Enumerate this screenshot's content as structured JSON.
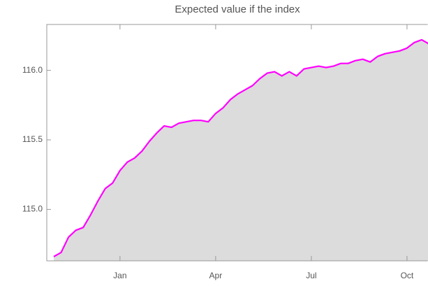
{
  "chart_data": {
    "type": "area-line",
    "title": "Expected value if the index",
    "categories": [
      null,
      null,
      null,
      null,
      null,
      null,
      null,
      null,
      null,
      "Jan",
      null,
      null,
      null,
      null,
      null,
      null,
      null,
      null,
      null,
      null,
      null,
      null,
      "Apr",
      null,
      null,
      null,
      null,
      null,
      null,
      null,
      null,
      null,
      null,
      null,
      null,
      "Jul",
      null,
      null,
      null,
      null,
      null,
      null,
      null,
      null,
      null,
      null,
      null,
      null,
      "Oct",
      null,
      null,
      null
    ],
    "values": [
      114.66,
      114.69,
      114.8,
      114.85,
      114.87,
      114.96,
      115.06,
      115.15,
      115.19,
      115.28,
      115.34,
      115.37,
      115.42,
      115.49,
      115.55,
      115.6,
      115.59,
      115.62,
      115.63,
      115.64,
      115.64,
      115.63,
      115.69,
      115.73,
      115.79,
      115.83,
      115.86,
      115.89,
      115.94,
      115.98,
      115.99,
      115.96,
      115.99,
      115.96,
      116.01,
      116.02,
      116.03,
      116.02,
      116.03,
      116.05,
      116.05,
      116.07,
      116.08,
      116.06,
      116.1,
      116.12,
      116.13,
      116.14,
      116.16,
      116.2,
      116.22,
      116.19
    ],
    "color": "#ff00ff",
    "fill_color": "#dcdcdc",
    "ylim": [
      114.63,
      116.33
    ],
    "yticks": [
      {
        "value": 115,
        "label": "115.0"
      },
      115.5,
      {
        "value": 116,
        "label": "116.0"
      }
    ]
  }
}
